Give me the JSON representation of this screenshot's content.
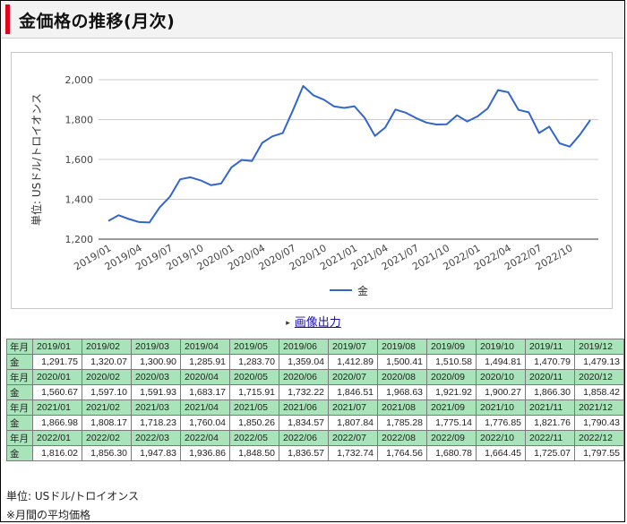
{
  "page": {
    "title": "金価格の推移(月次)"
  },
  "export_label": "画像出力",
  "table": {
    "header_label": "年月",
    "row_label": "金",
    "blocks": [
      {
        "months": [
          "2019/01",
          "2019/02",
          "2019/03",
          "2019/04",
          "2019/05",
          "2019/06",
          "2019/07",
          "2019/08",
          "2019/09",
          "2019/10",
          "2019/11",
          "2019/12"
        ],
        "values": [
          "1,291.75",
          "1,320.07",
          "1,300.90",
          "1,285.91",
          "1,283.70",
          "1,359.04",
          "1,412.89",
          "1,500.41",
          "1,510.58",
          "1,494.81",
          "1,470.79",
          "1,479.13"
        ]
      },
      {
        "months": [
          "2020/01",
          "2020/02",
          "2020/03",
          "2020/04",
          "2020/05",
          "2020/06",
          "2020/07",
          "2020/08",
          "2020/09",
          "2020/10",
          "2020/11",
          "2020/12"
        ],
        "values": [
          "1,560.67",
          "1,597.10",
          "1,591.93",
          "1,683.17",
          "1,715.91",
          "1,732.22",
          "1,846.51",
          "1,968.63",
          "1,921.92",
          "1,900.27",
          "1,866.30",
          "1,858.42"
        ]
      },
      {
        "months": [
          "2021/01",
          "2021/02",
          "2021/03",
          "2021/04",
          "2021/05",
          "2021/06",
          "2021/07",
          "2021/08",
          "2021/09",
          "2021/10",
          "2021/11",
          "2021/12"
        ],
        "values": [
          "1,866.98",
          "1,808.17",
          "1,718.23",
          "1,760.04",
          "1,850.26",
          "1,834.57",
          "1,807.84",
          "1,785.28",
          "1,775.14",
          "1,776.85",
          "1,821.76",
          "1,790.43"
        ]
      },
      {
        "months": [
          "2022/01",
          "2022/02",
          "2022/03",
          "2022/04",
          "2022/05",
          "2022/06",
          "2022/07",
          "2022/08",
          "2022/09",
          "2022/10",
          "2022/11",
          "2022/12"
        ],
        "values": [
          "1,816.02",
          "1,856.30",
          "1,947.83",
          "1,936.86",
          "1,848.50",
          "1,836.57",
          "1,732.74",
          "1,764.56",
          "1,680.78",
          "1,664.45",
          "1,725.07",
          "1,797.55"
        ]
      }
    ]
  },
  "notes": [
    "単位: USドル/トロイオンス",
    "※月間の平均価格"
  ],
  "chart_data": {
    "type": "line",
    "ylabel": "単位: USドル/トロイオンス",
    "ylim": [
      1200,
      2000
    ],
    "yticks": [
      "1,200",
      "1,400",
      "1,600",
      "1,800",
      "2,000"
    ],
    "ytick_values": [
      1200,
      1400,
      1600,
      1800,
      2000
    ],
    "grid": true,
    "legend_position": "bottom",
    "xtick_labels": [
      "2019/01",
      "2019/04",
      "2019/07",
      "2019/10",
      "2020/01",
      "2020/04",
      "2020/07",
      "2020/10",
      "2021/01",
      "2021/04",
      "2021/07",
      "2021/10",
      "2022/01",
      "2022/04",
      "2022/07",
      "2022/10"
    ],
    "x": [
      "2019/01",
      "2019/02",
      "2019/03",
      "2019/04",
      "2019/05",
      "2019/06",
      "2019/07",
      "2019/08",
      "2019/09",
      "2019/10",
      "2019/11",
      "2019/12",
      "2020/01",
      "2020/02",
      "2020/03",
      "2020/04",
      "2020/05",
      "2020/06",
      "2020/07",
      "2020/08",
      "2020/09",
      "2020/10",
      "2020/11",
      "2020/12",
      "2021/01",
      "2021/02",
      "2021/03",
      "2021/04",
      "2021/05",
      "2021/06",
      "2021/07",
      "2021/08",
      "2021/09",
      "2021/10",
      "2021/11",
      "2021/12",
      "2022/01",
      "2022/02",
      "2022/03",
      "2022/04",
      "2022/05",
      "2022/06",
      "2022/07",
      "2022/08",
      "2022/09",
      "2022/10",
      "2022/11",
      "2022/12"
    ],
    "series": [
      {
        "name": "金",
        "color": "#3366cc",
        "values": [
          1291.75,
          1320.07,
          1300.9,
          1285.91,
          1283.7,
          1359.04,
          1412.89,
          1500.41,
          1510.58,
          1494.81,
          1470.79,
          1479.13,
          1560.67,
          1597.1,
          1591.93,
          1683.17,
          1715.91,
          1732.22,
          1846.51,
          1968.63,
          1921.92,
          1900.27,
          1866.3,
          1858.42,
          1866.98,
          1808.17,
          1718.23,
          1760.04,
          1850.26,
          1834.57,
          1807.84,
          1785.28,
          1775.14,
          1776.85,
          1821.76,
          1790.43,
          1816.02,
          1856.3,
          1947.83,
          1936.86,
          1848.5,
          1836.57,
          1732.74,
          1764.56,
          1680.78,
          1664.45,
          1725.07,
          1797.55
        ]
      }
    ]
  },
  "colors": {
    "accent": "#e3001b",
    "table_header": "#a9e3b9",
    "line": "#3366cc",
    "link": "#1a0dab"
  }
}
